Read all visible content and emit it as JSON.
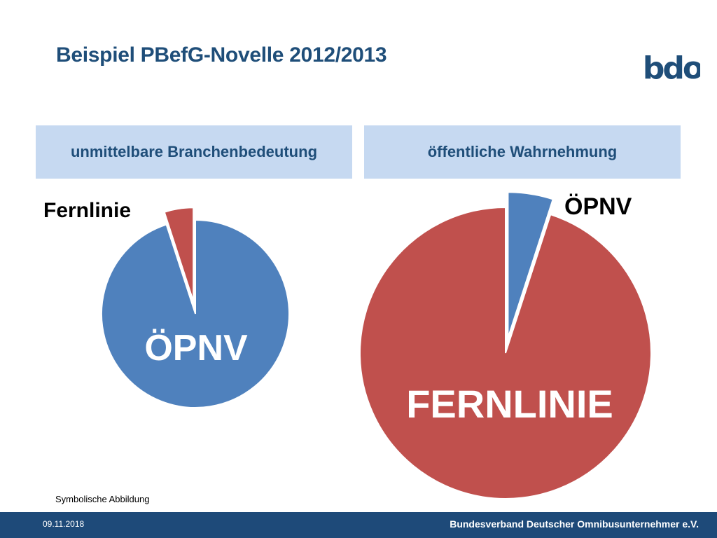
{
  "title": "Beispiel PBefG-Novelle 2012/2013",
  "logo_text": "bdo",
  "colors": {
    "primary": "#1f4e79",
    "blue": "#4f81bd",
    "red": "#c0504d",
    "header_fill": "#c6d9f1",
    "footer": "#1e4a79"
  },
  "chart_data": [
    {
      "type": "pie",
      "title": "unmittelbare Branchenbedeutung",
      "slices": [
        {
          "label": "ÖPNV",
          "value": 95,
          "color": "#4f81bd",
          "exploded": false
        },
        {
          "label": "Fernlinie",
          "value": 5,
          "color": "#c0504d",
          "exploded": true
        }
      ]
    },
    {
      "type": "pie",
      "title": "öffentliche Wahrnehmung",
      "slices": [
        {
          "label": "ÖPNV",
          "value": 5,
          "color": "#4f81bd",
          "exploded": true
        },
        {
          "label": "FERNLINIE",
          "value": 95,
          "color": "#c0504d",
          "exploded": false
        }
      ]
    }
  ],
  "caption": "Symbolische Abbildung",
  "footer": {
    "date": "09.11.2018",
    "organization": "Bundesverband Deutscher Omnibusunternehmer e.V."
  }
}
